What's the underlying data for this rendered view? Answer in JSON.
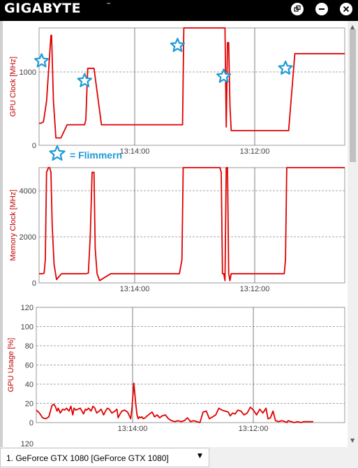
{
  "app": {
    "brand": "GIGABYTE",
    "trademark": "™",
    "window_buttons": [
      {
        "name": "restore-icon",
        "glyph": "⧉"
      },
      {
        "name": "minimize-icon",
        "glyph": "—"
      },
      {
        "name": "close-icon",
        "glyph": "✕"
      }
    ]
  },
  "annotation": {
    "legend_text": "= Flimmern",
    "marker_icon": "star-outline-icon",
    "color": "#1e9ad6"
  },
  "colors": {
    "series": "#e00000",
    "axis_label": "#c00000",
    "grid": "#888888",
    "accent": "#1e9ad6"
  },
  "gpu_selector": {
    "selected": "1. GeForce GTX 1080 [GeForce GTX 1080]",
    "arrow": "▼"
  },
  "scrollbar": {
    "up": "▲",
    "down": "▼"
  },
  "chart_data": [
    {
      "type": "line",
      "ylabel": "GPU Clock [MHz]",
      "yticks": [
        0,
        1000
      ],
      "ylim": [
        0,
        1600
      ],
      "xticks": [
        "13:14:00",
        "13:12:00"
      ],
      "grid": true,
      "series": [
        {
          "x": [
            0,
            3,
            7,
            12,
            19,
            20,
            23,
            27,
            35,
            45,
            55,
            63,
            69,
            73,
            75,
            78,
            88,
            100,
            115,
            125,
            135,
            145,
            150,
            155,
            162,
            175,
            185,
            195,
            205,
            210,
            215,
            222,
            230,
            232,
            234,
            236,
            260,
            275,
            285,
            290,
            292,
            296,
            298,
            300,
            302,
            304,
            306,
            308,
            312,
            320,
            330,
            340,
            355,
            365,
            370,
            375,
            380,
            385,
            390,
            400,
            410,
            420,
            430,
            440,
            450,
            460,
            470,
            480,
            490
          ],
          "y": [
            300,
            300,
            320,
            600,
            1500,
            1500,
            600,
            100,
            100,
            280,
            280,
            280,
            280,
            280,
            350,
            1050,
            1050,
            280,
            280,
            280,
            280,
            280,
            280,
            280,
            280,
            280,
            280,
            280,
            280,
            280,
            280,
            280,
            280,
            1600,
            1600,
            1600,
            1600,
            1600,
            1600,
            1600,
            1600,
            1600,
            1600,
            250,
            1400,
            1400,
            550,
            200,
            200,
            200,
            200,
            200,
            200,
            200,
            200,
            200,
            200,
            200,
            200,
            200,
            1250,
            1250,
            1250,
            1250,
            1250,
            1250,
            1250,
            1250,
            1250
          ]
        }
      ],
      "annotations": [
        {
          "label": "star-1",
          "x": 4,
          "y": 1150
        },
        {
          "label": "star-2",
          "x": 73,
          "y": 880
        },
        {
          "label": "star-3",
          "x": 222,
          "y": 1360
        },
        {
          "label": "star-4",
          "x": 296,
          "y": 940
        },
        {
          "label": "star-5",
          "x": 395,
          "y": 1050
        }
      ]
    },
    {
      "type": "line",
      "ylabel": "Memory Clock [MHz]",
      "yticks": [
        0,
        2000,
        4000
      ],
      "ylim": [
        0,
        5000
      ],
      "xticks": [
        "13:14:00",
        "13:12:00"
      ],
      "grid": true,
      "series": [
        {
          "x": [
            0,
            6,
            8,
            10,
            12,
            15,
            17,
            19,
            21,
            24,
            28,
            36,
            45,
            60,
            70,
            75,
            79,
            82,
            85,
            88,
            90,
            93,
            97,
            115,
            150,
            190,
            210,
            220,
            225,
            229,
            231,
            234,
            260,
            285,
            290,
            292,
            294,
            296,
            298,
            300,
            302,
            304,
            306,
            308,
            312,
            330,
            360,
            380,
            393,
            395,
            397,
            400,
            430,
            460,
            490
          ],
          "y": [
            400,
            400,
            420,
            1000,
            4800,
            5000,
            5000,
            4800,
            2500,
            800,
            150,
            400,
            400,
            400,
            400,
            400,
            420,
            2000,
            4800,
            4800,
            1500,
            400,
            100,
            400,
            400,
            400,
            400,
            400,
            400,
            1000,
            5000,
            5000,
            5000,
            5000,
            5000,
            4800,
            400,
            400,
            100,
            5000,
            5000,
            400,
            100,
            400,
            400,
            400,
            400,
            400,
            400,
            1000,
            5000,
            5000,
            5000,
            5000,
            5000
          ]
        }
      ]
    },
    {
      "type": "line",
      "ylabel": "GPU Usage [%]",
      "yticks": [
        0,
        20,
        40,
        60,
        80,
        100,
        120
      ],
      "ylim": [
        0,
        120
      ],
      "xticks": [
        "13:14:00",
        "13:12:00"
      ],
      "grid": true,
      "series": [
        {
          "x": [
            0,
            5,
            10,
            15,
            20,
            25,
            28,
            30,
            33,
            35,
            38,
            42,
            45,
            48,
            52,
            55,
            58,
            60,
            63,
            66,
            70,
            75,
            78,
            80,
            83,
            87,
            90,
            93,
            96,
            100,
            103,
            107,
            110,
            113,
            116,
            120,
            125,
            128,
            130,
            133,
            136,
            140,
            145,
            150,
            152,
            155,
            158,
            160,
            162,
            164,
            166,
            168,
            170,
            173,
            176,
            180,
            184,
            188,
            192,
            196,
            200,
            205,
            210,
            215,
            220,
            225,
            230,
            235,
            240,
            245,
            250,
            255,
            260,
            265,
            270,
            275,
            280,
            285,
            290,
            295,
            300,
            305,
            308,
            312,
            316,
            320,
            325,
            330,
            335,
            340,
            345,
            350,
            355,
            360,
            365,
            368,
            372,
            376,
            380,
            385,
            390,
            395,
            398,
            400,
            405,
            410,
            415,
            420,
            425,
            430,
            435,
            440
          ],
          "y": [
            13,
            10,
            5,
            4,
            6,
            18,
            19,
            17,
            12,
            15,
            10,
            14,
            13,
            15,
            12,
            17,
            8,
            15,
            13,
            14,
            15,
            9,
            14,
            13,
            15,
            12,
            17,
            15,
            10,
            12,
            14,
            8,
            12,
            15,
            14,
            10,
            12,
            14,
            5,
            9,
            12,
            13,
            11,
            4,
            15,
            41,
            20,
            8,
            4,
            6,
            5,
            6,
            4,
            5,
            7,
            9,
            11,
            6,
            8,
            5,
            7,
            8,
            4,
            2,
            1,
            2,
            1,
            2,
            5,
            1,
            2,
            1,
            0,
            11,
            12,
            4,
            6,
            8,
            15,
            13,
            12,
            11,
            7,
            10,
            9,
            13,
            12,
            8,
            10,
            16,
            13,
            8,
            14,
            10,
            15,
            4,
            5,
            12,
            2,
            1,
            2,
            1,
            0,
            2,
            1,
            0,
            1,
            0,
            1,
            1,
            1,
            1
          ]
        }
      ]
    }
  ]
}
